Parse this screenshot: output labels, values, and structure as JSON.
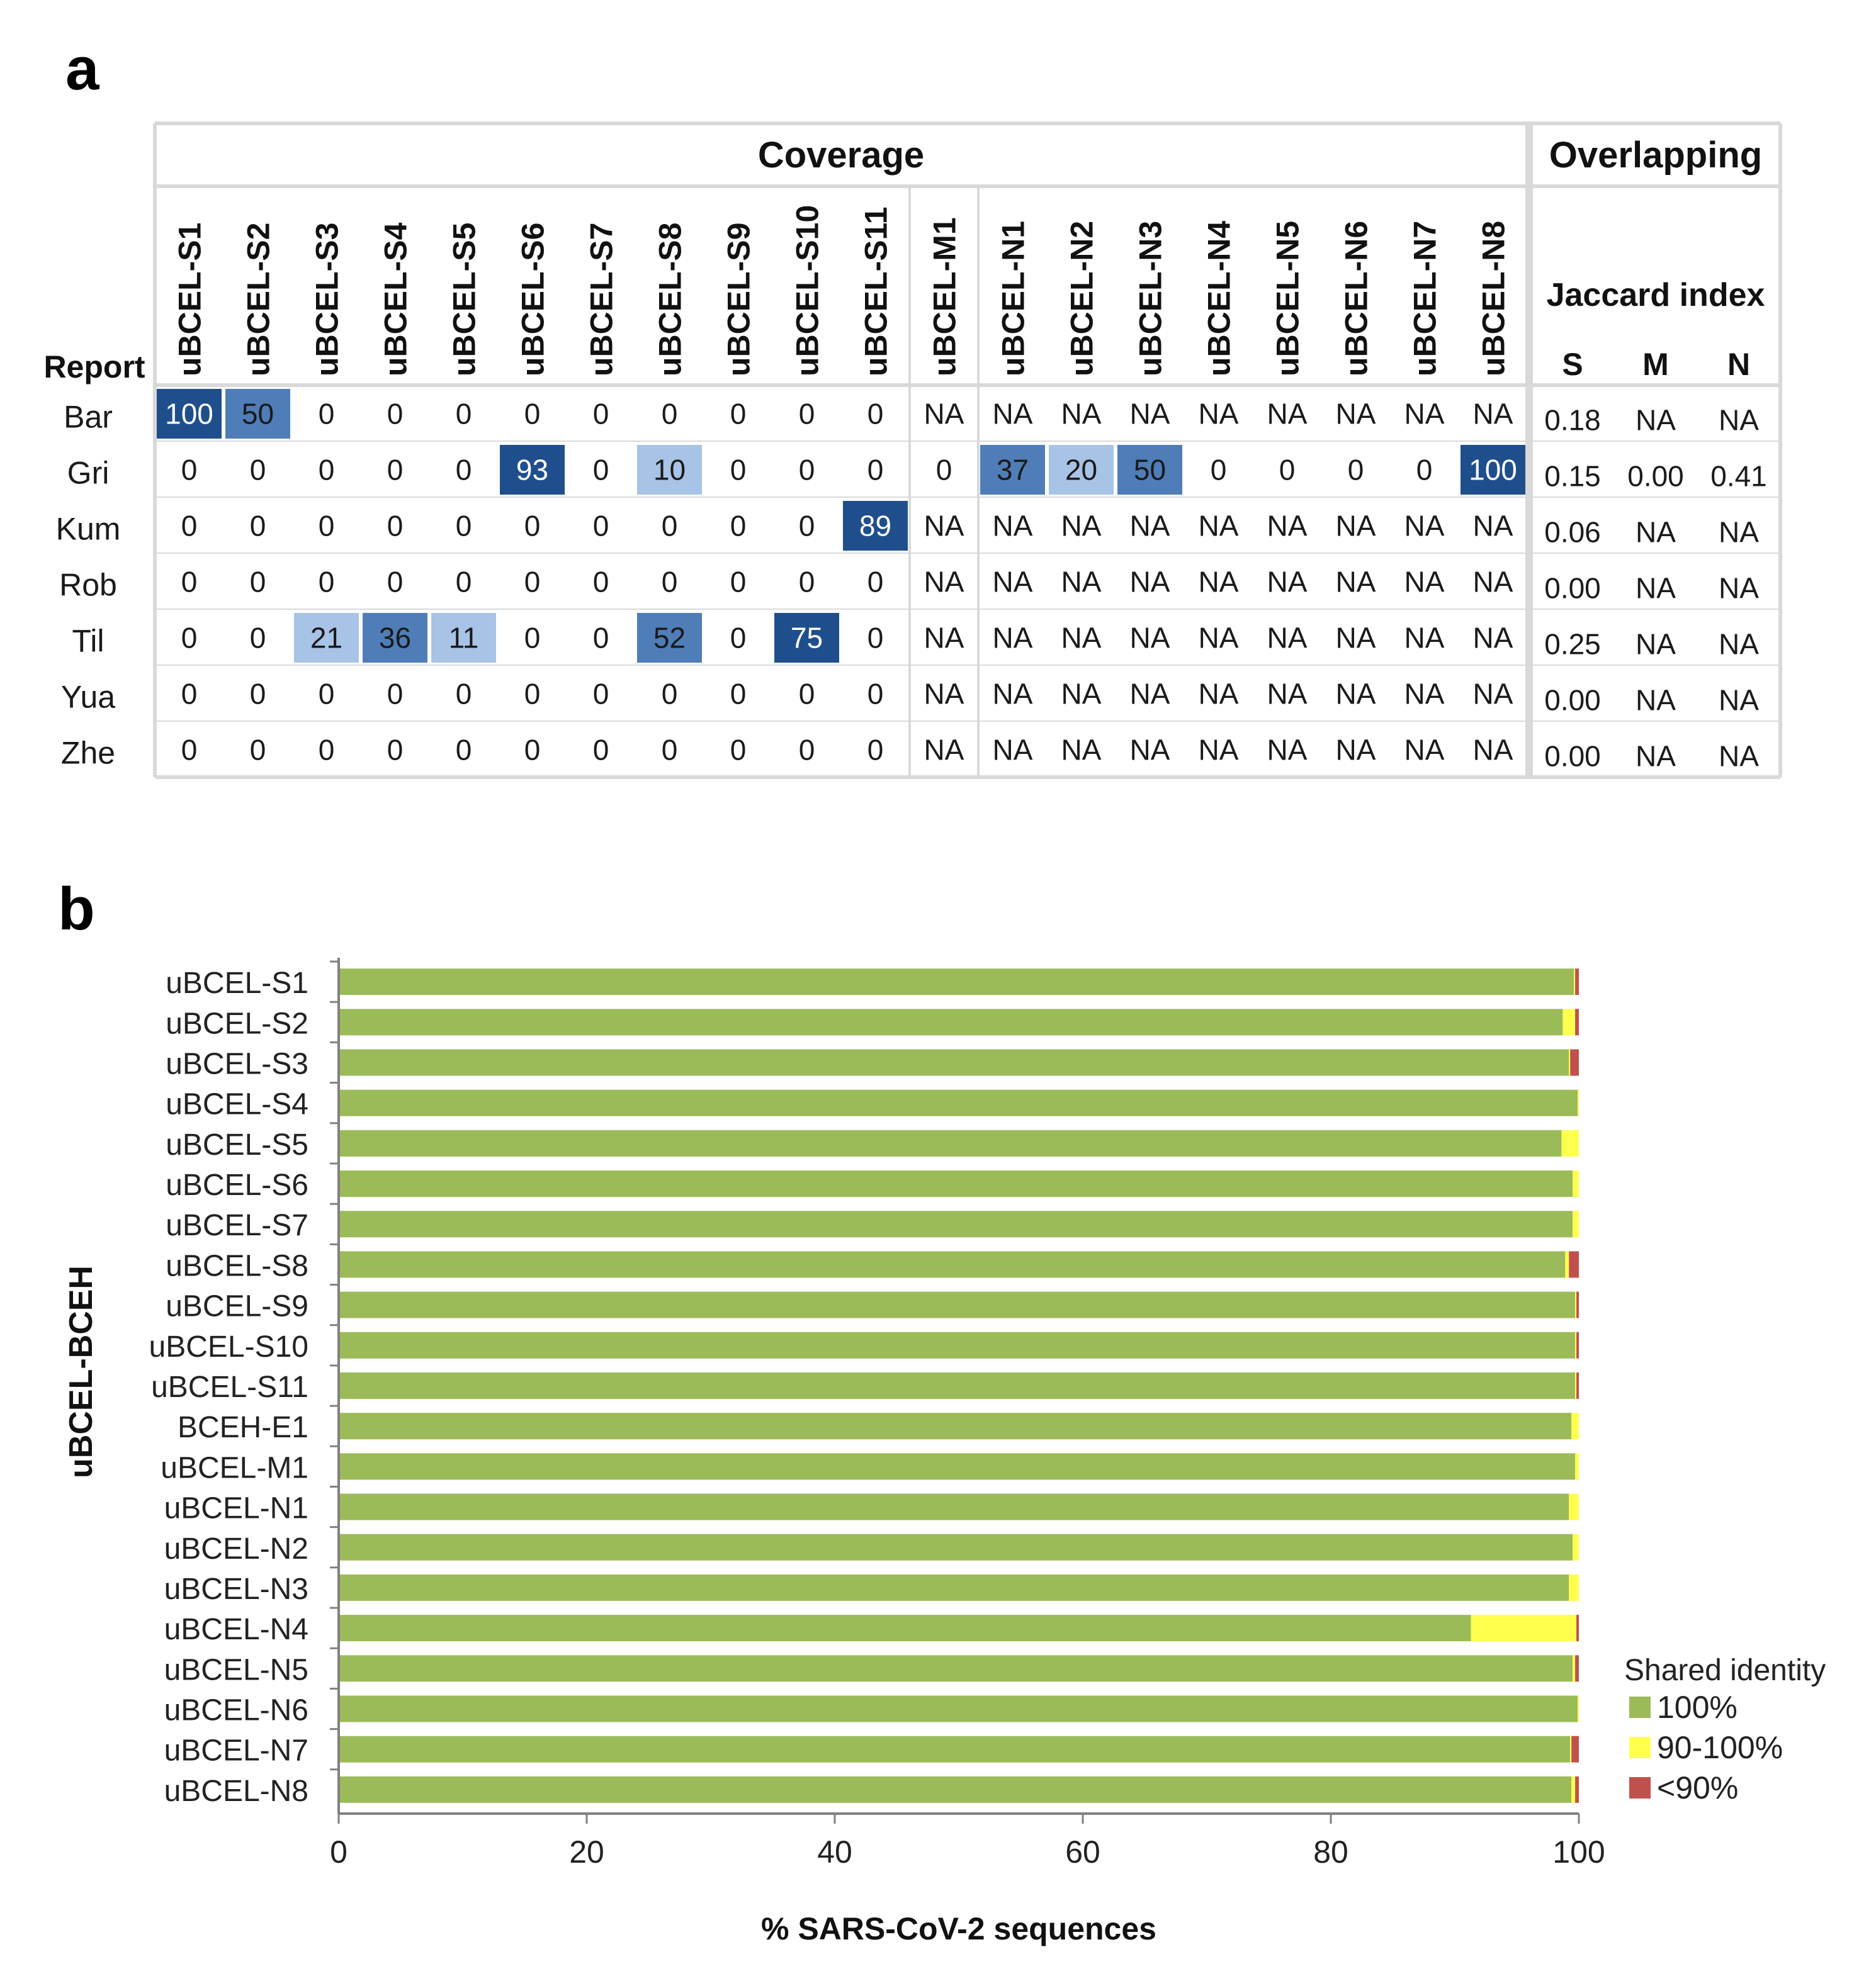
{
  "panel_labels": {
    "a": "a",
    "b": "b"
  },
  "colors": {
    "dark": "#1f4e8c",
    "mid": "#4f7db8",
    "light": "#a7c3e6",
    "grid": "#d9d9d9",
    "bar_green": "#9bbb59",
    "bar_yellow": "#ffff4d",
    "bar_red": "#c0504d"
  },
  "chart_data": [
    {
      "type": "table",
      "group_headers": {
        "coverage": "Coverage",
        "overlapping": "Overlapping"
      },
      "row_header": "Report",
      "jaccard_header": "Jaccard index",
      "jaccard_subheaders": [
        "S",
        "M",
        "N"
      ],
      "columns": [
        "uBCEL-S1",
        "uBCEL-S2",
        "uBCEL-S3",
        "uBCEL-S4",
        "uBCEL-S5",
        "uBCEL-S6",
        "uBCEL-S7",
        "uBCEL-S8",
        "uBCEL-S9",
        "uBCEL-S10",
        "uBCEL-S11",
        "uBCEL-M1",
        "uBCEL-N1",
        "uBCEL-N2",
        "uBCEL-N3",
        "uBCEL-N4",
        "uBCEL-N5",
        "uBCEL-N6",
        "uBCEL-N7",
        "uBCEL-N8"
      ],
      "rows": [
        {
          "name": "Bar",
          "values": [
            "100",
            "50",
            "0",
            "0",
            "0",
            "0",
            "0",
            "0",
            "0",
            "0",
            "0",
            "NA",
            "NA",
            "NA",
            "NA",
            "NA",
            "NA",
            "NA",
            "NA",
            "NA"
          ],
          "jaccard": [
            "0.18",
            "NA",
            "NA"
          ]
        },
        {
          "name": "Gri",
          "values": [
            "0",
            "0",
            "0",
            "0",
            "0",
            "93",
            "0",
            "10",
            "0",
            "0",
            "0",
            "0",
            "37",
            "20",
            "50",
            "0",
            "0",
            "0",
            "0",
            "100"
          ],
          "jaccard": [
            "0.15",
            "0.00",
            "0.41"
          ]
        },
        {
          "name": "Kum",
          "values": [
            "0",
            "0",
            "0",
            "0",
            "0",
            "0",
            "0",
            "0",
            "0",
            "0",
            "89",
            "NA",
            "NA",
            "NA",
            "NA",
            "NA",
            "NA",
            "NA",
            "NA",
            "NA"
          ],
          "jaccard": [
            "0.06",
            "NA",
            "NA"
          ]
        },
        {
          "name": "Rob",
          "values": [
            "0",
            "0",
            "0",
            "0",
            "0",
            "0",
            "0",
            "0",
            "0",
            "0",
            "0",
            "NA",
            "NA",
            "NA",
            "NA",
            "NA",
            "NA",
            "NA",
            "NA",
            "NA"
          ],
          "jaccard": [
            "0.00",
            "NA",
            "NA"
          ]
        },
        {
          "name": "Til",
          "values": [
            "0",
            "0",
            "21",
            "36",
            "11",
            "0",
            "0",
            "52",
            "0",
            "75",
            "0",
            "NA",
            "NA",
            "NA",
            "NA",
            "NA",
            "NA",
            "NA",
            "NA",
            "NA"
          ],
          "jaccard": [
            "0.25",
            "NA",
            "NA"
          ]
        },
        {
          "name": "Yua",
          "values": [
            "0",
            "0",
            "0",
            "0",
            "0",
            "0",
            "0",
            "0",
            "0",
            "0",
            "0",
            "NA",
            "NA",
            "NA",
            "NA",
            "NA",
            "NA",
            "NA",
            "NA",
            "NA"
          ],
          "jaccard": [
            "0.00",
            "NA",
            "NA"
          ]
        },
        {
          "name": "Zhe",
          "values": [
            "0",
            "0",
            "0",
            "0",
            "0",
            "0",
            "0",
            "0",
            "0",
            "0",
            "0",
            "NA",
            "NA",
            "NA",
            "NA",
            "NA",
            "NA",
            "NA",
            "NA",
            "NA"
          ],
          "jaccard": [
            "0.00",
            "NA",
            "NA"
          ]
        }
      ]
    },
    {
      "type": "bar",
      "orientation": "horizontal",
      "stacked": true,
      "categories": [
        "uBCEL-S1",
        "uBCEL-S2",
        "uBCEL-S3",
        "uBCEL-S4",
        "uBCEL-S5",
        "uBCEL-S6",
        "uBCEL-S7",
        "uBCEL-S8",
        "uBCEL-S9",
        "uBCEL-S10",
        "uBCEL-S11",
        "BCEH-E1",
        "uBCEL-M1",
        "uBCEL-N1",
        "uBCEL-N2",
        "uBCEL-N3",
        "uBCEL-N4",
        "uBCEL-N5",
        "uBCEL-N6",
        "uBCEL-N7",
        "uBCEL-N8"
      ],
      "series": [
        {
          "name": "100%",
          "values": [
            99.6,
            98.7,
            99.2,
            99.9,
            98.6,
            99.5,
            99.5,
            98.9,
            99.7,
            99.7,
            99.7,
            99.4,
            99.7,
            99.2,
            99.5,
            99.2,
            91.3,
            99.5,
            99.9,
            99.3,
            99.4
          ]
        },
        {
          "name": "90-100%",
          "values": [
            0.1,
            1.0,
            0.1,
            0.1,
            1.4,
            0.5,
            0.5,
            0.3,
            0.1,
            0.1,
            0.1,
            0.6,
            0.3,
            0.8,
            0.5,
            0.8,
            8.5,
            0.2,
            0.1,
            0.1,
            0.3
          ]
        },
        {
          "name": "<90%",
          "values": [
            0.3,
            0.3,
            0.7,
            0.0,
            0.0,
            0.0,
            0.0,
            0.8,
            0.2,
            0.2,
            0.2,
            0.0,
            0.0,
            0.0,
            0.0,
            0.0,
            0.2,
            0.3,
            0.0,
            0.6,
            0.3
          ]
        }
      ],
      "xlabel": "% SARS-CoV-2 sequences",
      "ylabel": "uBCEL-BCEH",
      "xlim": [
        0,
        100
      ],
      "xticks": [
        0,
        20,
        40,
        60,
        80,
        100
      ],
      "legend_title": "Shared identity",
      "legend_position": "bottom-right",
      "grid": false
    }
  ]
}
